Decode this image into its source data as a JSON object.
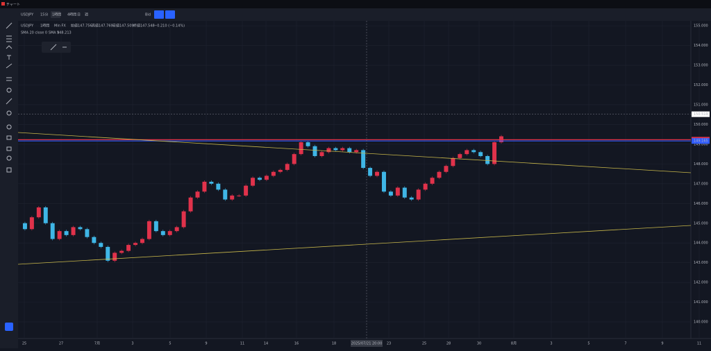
{
  "window_title": "チャート",
  "toolbar": {
    "symbol": "USDJPY",
    "intervals": [
      "15分",
      "1時間",
      "4時間",
      "日",
      "週"
    ],
    "price_type": "Bid"
  },
  "legend": {
    "symbol": "USDJPY",
    "interval": "1時間",
    "source": "Min FX",
    "open_label": "始値",
    "open": "147.756",
    "high_label": "高値",
    "high": "147.769",
    "low_label": "安値",
    "low": "147.509",
    "close_label": "終値",
    "close": "147.548",
    "change": "−0.210 (−0.14%)",
    "sma": "SMA 20 close 0 SMA 9",
    "sma_value": "148.213"
  },
  "chart_data": {
    "type": "candlestick",
    "x_labels": [
      "25",
      "27",
      "7月",
      "3",
      "5",
      "9",
      "11",
      "14",
      "16",
      "18",
      "23",
      "25",
      "28",
      "30",
      "8月",
      "3",
      "5",
      "7",
      "9",
      "11"
    ],
    "crosshair_label": "2025/07/21  20:00",
    "closes": [
      145.0,
      144.7,
      145.3,
      145.8,
      145.0,
      144.2,
      144.6,
      144.4,
      144.8,
      144.7,
      144.3,
      144.0,
      143.8,
      143.1,
      143.5,
      143.6,
      143.9,
      144.0,
      144.2,
      145.1,
      144.6,
      144.4,
      144.6,
      144.8,
      145.6,
      146.3,
      146.6,
      147.1,
      147.0,
      146.7,
      146.2,
      146.4,
      146.4,
      146.9,
      147.3,
      147.2,
      147.4,
      147.6,
      147.7,
      148.0,
      148.5,
      149.1,
      148.9,
      148.4,
      148.6,
      148.8,
      148.7,
      148.8,
      148.6,
      148.7,
      147.8,
      147.4,
      147.6,
      146.6,
      146.4,
      146.8,
      146.3,
      146.2,
      146.7,
      147.0,
      147.3,
      147.6,
      147.9,
      148.3,
      148.5,
      148.7,
      148.6,
      148.4,
      148.0,
      149.1,
      149.4
    ],
    "up_color": "#e0324b",
    "down_color": "#3fb6e6",
    "ylim": [
      139.16,
      155.25
    ],
    "yticks": [
      {
        "value": 140,
        "label": "140.000"
      },
      {
        "value": 141,
        "label": "141.000"
      },
      {
        "value": 142,
        "label": "142.000"
      },
      {
        "value": 143,
        "label": "143.000"
      },
      {
        "value": 144,
        "label": "144.000"
      },
      {
        "value": 145,
        "label": "145.000"
      },
      {
        "value": 146,
        "label": "146.000"
      },
      {
        "value": 147,
        "label": "147.000"
      },
      {
        "value": 148,
        "label": "148.000"
      },
      {
        "value": 149,
        "label": "149.000"
      },
      {
        "value": 150,
        "label": "150.000"
      },
      {
        "value": 151,
        "label": "151.000"
      },
      {
        "value": 152,
        "label": "152.000"
      },
      {
        "value": 153,
        "label": "153.000"
      },
      {
        "value": 154,
        "label": "154.000"
      },
      {
        "value": 155,
        "label": "155.000"
      }
    ],
    "price_marks": [
      {
        "value": 150.519,
        "label": "150.519",
        "color": "#ffffff"
      },
      {
        "value": 149.23,
        "label": "149.230",
        "color": "#e0324b"
      },
      {
        "value": 149.165,
        "label": "149.165",
        "color": "#2f5bff"
      }
    ],
    "grid": true
  }
}
